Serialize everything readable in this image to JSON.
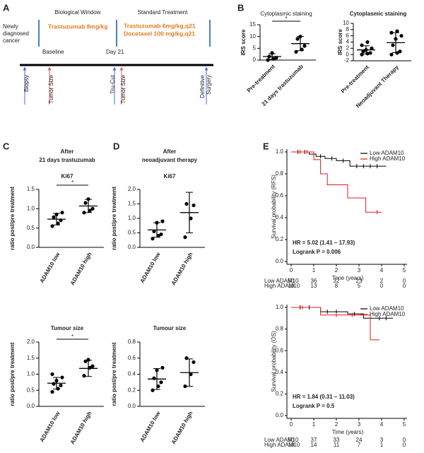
{
  "panels": [
    "A",
    "B",
    "C",
    "D",
    "E"
  ],
  "panel_titles": {
    "C": [
      "After",
      "21 days trastuzumab"
    ],
    "D": [
      "After",
      "neoadjuvant therapy"
    ]
  },
  "timeline": {
    "phases": [
      "Biological Window",
      "Standard Treatment"
    ],
    "start": [
      "Newly",
      "diagnosed",
      "cancer"
    ],
    "treatment": "Trastuzumab 8mg/kg",
    "standard": [
      "Trastuzumab 6mg/kg,q21",
      "Docetaxel 100 mg/kg,q21"
    ],
    "milestones": [
      "Baseline",
      "Day 21"
    ],
    "events": [
      "Biopsy",
      "Tumor Size",
      "Tru-Cut",
      "Tumor Size",
      [
        "Definitive",
        "Surgery"
      ]
    ]
  },
  "chart_data": [
    {
      "type": "dotplot",
      "title": "Cytoplasmic staining",
      "ylabel": "IRS score",
      "categories": [
        "Pre-treatment",
        "21 days trastuzumab"
      ],
      "points": [
        [
          0,
          0.5,
          1,
          1.5,
          3
        ],
        [
          3.5,
          4.5,
          6,
          9,
          10
        ]
      ],
      "means": [
        1.5,
        7
      ],
      "sds": [
        1.2,
        3
      ],
      "ylim": [
        0,
        15
      ],
      "yticks": [
        0,
        5,
        10,
        15
      ],
      "annotation": "*"
    },
    {
      "type": "dotplot",
      "title": "Cytoplasmic staining",
      "ylabel": "IRS score",
      "categories": [
        "Pre-treatment",
        "Neoadjuvant Therapy"
      ],
      "points": [
        [
          0,
          0.3,
          0.5,
          1,
          1.5,
          2,
          3,
          4
        ],
        [
          0,
          0.5,
          1,
          3,
          5,
          6,
          7,
          7.5
        ]
      ],
      "means": [
        1.5,
        3.8
      ],
      "sds": [
        1.3,
        3.2
      ],
      "ylim": [
        -2,
        10
      ],
      "yticks": [
        -2,
        0,
        2,
        4,
        6,
        8,
        10
      ]
    },
    {
      "type": "dotplot",
      "title": "Ki67",
      "ylabel": "ratio post/pre treatment",
      "categories": [
        "ADAM10 low",
        "ADAM10 high"
      ],
      "points": [
        [
          0.55,
          0.62,
          0.7,
          0.78,
          0.85,
          0.9
        ],
        [
          0.9,
          0.95,
          1.0,
          1.15,
          1.25
        ]
      ],
      "means": [
        0.73,
        1.07
      ],
      "sds": [
        0.15,
        0.17
      ],
      "ylim": [
        0,
        1.5
      ],
      "yticks": [
        {
          "value": 0,
          "label": "0.0"
        },
        0.5,
        {
          "value": 1,
          "label": "1.0"
        },
        1.5
      ],
      "annotation": "*"
    },
    {
      "type": "dotplot",
      "title": "Tumour size",
      "ylabel": "ratio post/pre treatment",
      "categories": [
        "ADAM10 low",
        "ADAM10 high"
      ],
      "points": [
        [
          0.45,
          0.55,
          0.65,
          0.7,
          0.8,
          0.9,
          1.0
        ],
        [
          0.95,
          1.2,
          1.25,
          1.4,
          1.45
        ]
      ],
      "means": [
        0.72,
        1.18
      ],
      "sds": [
        0.18,
        0.25
      ],
      "ylim": [
        0,
        2
      ],
      "yticks": [
        {
          "value": 0,
          "label": "0.0"
        },
        0.5,
        {
          "value": 1,
          "label": "1.0"
        },
        1.5,
        {
          "value": 2,
          "label": "2.0"
        }
      ],
      "annotation": "*"
    },
    {
      "type": "dotplot",
      "title": "Ki67",
      "ylabel": "ratio post/pre treatment",
      "categories": [
        "ADAM10 low",
        "ADAM10 high"
      ],
      "points": [
        [
          0.3,
          0.4,
          0.45,
          0.55,
          0.85,
          0.9
        ],
        [
          0.35,
          1.0,
          1.45,
          1.5
        ]
      ],
      "means": [
        0.6,
        1.2
      ],
      "sds": [
        0.25,
        0.7
      ],
      "ylim": [
        0,
        2
      ],
      "yticks": [
        {
          "value": 0,
          "label": "0.0"
        },
        0.5,
        {
          "value": 1,
          "label": "1.0"
        },
        1.5,
        {
          "value": 2,
          "label": "2.0"
        }
      ]
    },
    {
      "type": "dotplot",
      "title": "Tumour size",
      "ylabel": "ratio post/pre treatment",
      "categories": [
        "ADAM10 low",
        "ADAM10 high"
      ],
      "points": [
        [
          0.2,
          0.25,
          0.3,
          0.35,
          0.45,
          0.48
        ],
        [
          0.25,
          0.4,
          0.55,
          0.6
        ]
      ],
      "means": [
        0.34,
        0.42
      ],
      "sds": [
        0.13,
        0.17
      ],
      "ylim": [
        0,
        0.8
      ],
      "yticks": [
        {
          "value": 0,
          "label": "0.0"
        },
        0.2,
        0.4,
        0.6,
        0.8
      ]
    },
    {
      "type": "km",
      "ylabel": "Survival probability (RFS)",
      "xlabel": "Time (years)",
      "xlim": [
        0,
        5
      ],
      "xticks": [
        0,
        1,
        2,
        3,
        4,
        5
      ],
      "ylim": [
        0,
        1
      ],
      "yticks": [
        {
          "value": 0,
          "label": "0.0"
        },
        0.2,
        0.4,
        0.6,
        0.8,
        {
          "value": 1,
          "label": "1.0"
        }
      ],
      "legend": "top-right",
      "series": [
        {
          "name": "Low ADAM10",
          "color": "#000000",
          "x": [
            0,
            0.8,
            0.8,
            1.1,
            1.1,
            1.5,
            1.5,
            2.0,
            2.0,
            2.6,
            2.6,
            4.2
          ],
          "values": [
            1,
            1,
            0.98,
            0.98,
            0.96,
            0.96,
            0.94,
            0.94,
            0.92,
            0.92,
            0.87,
            0.87
          ],
          "censor_x": [
            0.3,
            0.6,
            1.3,
            1.8,
            2.3,
            2.9,
            3.2,
            3.5,
            3.8
          ],
          "censor_y": [
            1,
            1,
            0.96,
            0.94,
            0.92,
            0.87,
            0.87,
            0.87,
            0.87
          ]
        },
        {
          "name": "High ADAM10",
          "color": "#e41a1c",
          "x": [
            0,
            1.0,
            1.0,
            1.3,
            1.3,
            1.6,
            1.6,
            2.5,
            2.5,
            3.3,
            3.3,
            4.0
          ],
          "values": [
            1,
            1,
            0.93,
            0.93,
            0.8,
            0.8,
            0.7,
            0.7,
            0.58,
            0.58,
            0.45,
            0.45
          ],
          "censor_x": [
            0.4,
            0.7,
            3.8
          ],
          "censor_y": [
            1,
            1,
            0.45
          ]
        }
      ],
      "annotations": [
        "HR = 5.02 (1.41 – 17.93)",
        "Logrank P = 0.006"
      ],
      "risk_table": [
        {
          "label": "Low ADAM10",
          "counts": [
            50,
            36,
            32,
            23,
            2,
            0
          ]
        },
        {
          "label": "High ADAM10",
          "counts": [
            19,
            13,
            8,
            5,
            0,
            0
          ]
        }
      ]
    },
    {
      "type": "km",
      "ylabel": "Survival probability (OS)",
      "xlabel": "Time (years)",
      "xlim": [
        0,
        5
      ],
      "xticks": [
        0,
        1,
        2,
        3,
        4,
        5
      ],
      "ylim": [
        0,
        1
      ],
      "yticks": [
        {
          "value": 0,
          "label": "0.0"
        },
        0.2,
        0.4,
        0.6,
        0.8,
        {
          "value": 1,
          "label": "1.0"
        }
      ],
      "legend": "top-right",
      "series": [
        {
          "name": "Low ADAM10",
          "color": "#000000",
          "x": [
            0,
            1.3,
            1.3,
            2.5,
            2.5,
            3.2,
            3.2,
            4.5
          ],
          "values": [
            1,
            1,
            0.96,
            0.96,
            0.94,
            0.94,
            0.9,
            0.9
          ],
          "censor_x": [
            0.4,
            0.8,
            1.6,
            2.0,
            2.8,
            3.5,
            3.9,
            4.2
          ],
          "censor_y": [
            1,
            1,
            0.96,
            0.96,
            0.94,
            0.9,
            0.9,
            0.9
          ]
        },
        {
          "name": "High ADAM10",
          "color": "#e41a1c",
          "x": [
            0,
            1.3,
            1.3,
            3.5,
            3.5,
            3.9
          ],
          "values": [
            1,
            1,
            0.93,
            0.93,
            0.7,
            0.7
          ],
          "censor_x": [
            0.5,
            2.0,
            2.7
          ],
          "censor_y": [
            1,
            0.93,
            0.93
          ]
        }
      ],
      "annotations": [
        "HR = 1.84 (0.31 – 11.03)",
        "Logrank P = 0.5"
      ],
      "risk_table": [
        {
          "label": "Low ADAM10",
          "counts": [
            50,
            37,
            33,
            24,
            3,
            0
          ]
        },
        {
          "label": "High ADAM10",
          "counts": [
            19,
            14,
            11,
            7,
            1,
            0
          ]
        }
      ]
    }
  ]
}
